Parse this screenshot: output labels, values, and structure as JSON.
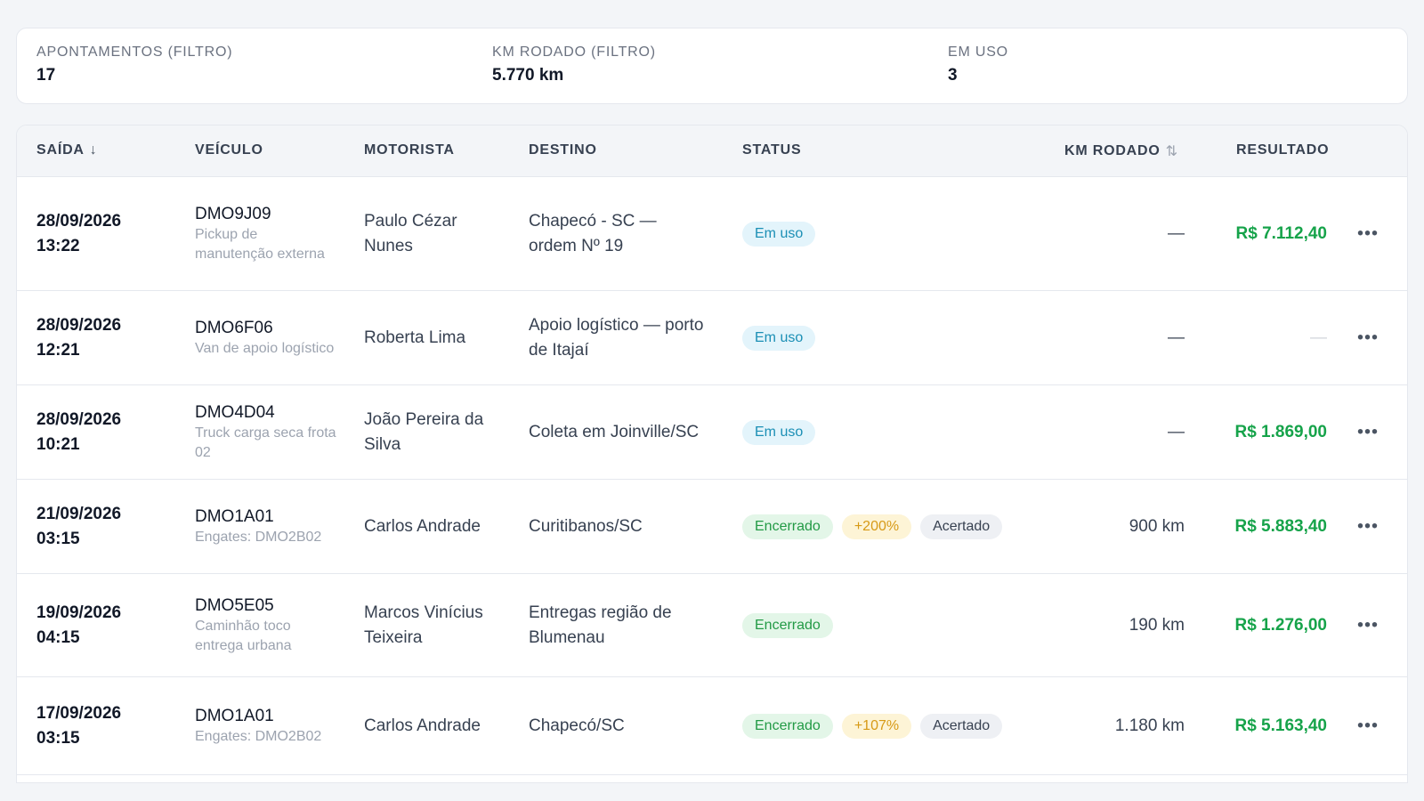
{
  "stats": [
    {
      "label": "APONTAMENTOS (FILTRO)",
      "value": "17"
    },
    {
      "label": "KM RODADO (FILTRO)",
      "value": "5.770 km"
    },
    {
      "label": "EM USO",
      "value": "3"
    }
  ],
  "columns": {
    "saida": "SAÍDA",
    "veiculo": "VEÍCULO",
    "motorista": "MOTORISTA",
    "destino": "DESTINO",
    "status": "STATUS",
    "km_rodado": "KM RODADO",
    "resultado": "RESULTADO"
  },
  "icons": {
    "sort_desc": "arrow-down-icon",
    "sort_both": "sort-arrows-icon",
    "more": "more-horizontal-icon"
  },
  "colors": {
    "em_uso": "#1b8fb5",
    "encerrado": "#229a45",
    "pct": "#d79a16",
    "resultado": "#16a34a"
  },
  "rows": [
    {
      "date": "28/09/2026",
      "time": "13:22",
      "plate": "DMO9J09",
      "desc": "Pickup de manutenção externa",
      "driver": "Paulo Cézar Nunes",
      "dest": "Chapecó - SC — ordem Nº 19",
      "status": "Em uso",
      "pct": "",
      "acertado": "",
      "km": "—",
      "result": "R$ 7.112,40"
    },
    {
      "date": "28/09/2026",
      "time": "12:21",
      "plate": "DMO6F06",
      "desc": "Van de apoio logístico",
      "driver": "Roberta Lima",
      "dest": "Apoio logístico — porto de Itajaí",
      "status": "Em uso",
      "pct": "",
      "acertado": "",
      "km": "—",
      "result": "—"
    },
    {
      "date": "28/09/2026",
      "time": "10:21",
      "plate": "DMO4D04",
      "desc": "Truck carga seca frota 02",
      "driver": "João Pereira da Silva",
      "dest": "Coleta em Joinville/SC",
      "status": "Em uso",
      "pct": "",
      "acertado": "",
      "km": "—",
      "result": "R$ 1.869,00"
    },
    {
      "date": "21/09/2026",
      "time": "03:15",
      "plate": "DMO1A01",
      "desc": "Engates: DMO2B02",
      "driver": "Carlos Andrade",
      "dest": "Curitibanos/SC",
      "status": "Encerrado",
      "pct": "+200%",
      "acertado": "Acertado",
      "km": "900 km",
      "result": "R$ 5.883,40"
    },
    {
      "date": "19/09/2026",
      "time": "04:15",
      "plate": "DMO5E05",
      "desc": "Caminhão toco entrega urbana",
      "driver": "Marcos Vinícius Teixeira",
      "dest": "Entregas região de Blumenau",
      "status": "Encerrado",
      "pct": "",
      "acertado": "",
      "km": "190 km",
      "result": "R$ 1.276,00"
    },
    {
      "date": "17/09/2026",
      "time": "03:15",
      "plate": "DMO1A01",
      "desc": "Engates: DMO2B02",
      "driver": "Carlos Andrade",
      "dest": "Chapecó/SC",
      "status": "Encerrado",
      "pct": "+107%",
      "acertado": "Acertado",
      "km": "1.180 km",
      "result": "R$ 5.163,40"
    }
  ]
}
